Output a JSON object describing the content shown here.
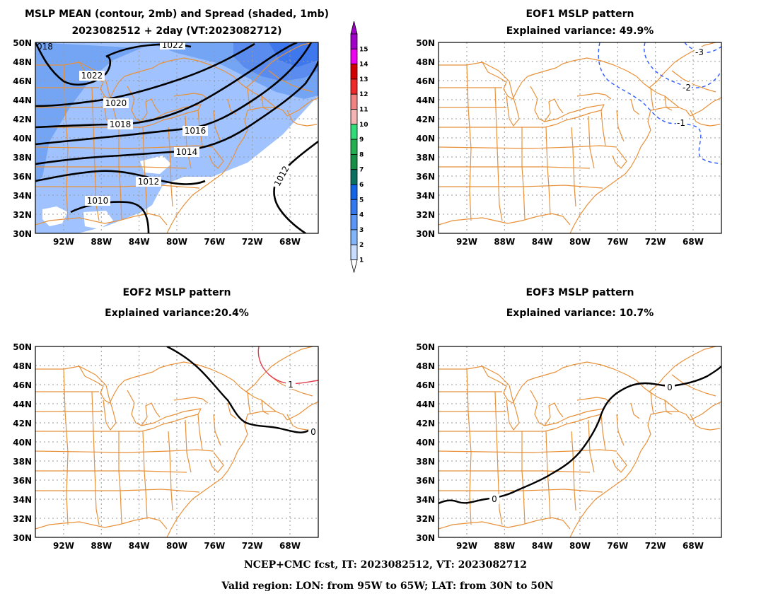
{
  "panels": {
    "mean": {
      "title1": "MSLP MEAN (contour, 2mb) and Spread (shaded, 1mb)",
      "title2": "2023082512 + 2day (VT:2023082712)",
      "contour_labels": [
        "1022",
        "1022",
        "1020",
        "1018",
        "1016",
        "1014",
        "1012",
        "1012",
        "1010",
        "018"
      ]
    },
    "eof1": {
      "title1": "EOF1 MSLP pattern",
      "title2": "Explained variance: 49.9%",
      "contour_labels": [
        "-3",
        "-2",
        "-1"
      ]
    },
    "eof2": {
      "title1": "EOF2 MSLP pattern",
      "title2": "Explained variance:20.4%",
      "contour_labels": [
        "0",
        "1"
      ]
    },
    "eof3": {
      "title1": "EOF3 MSLP pattern",
      "title2": "Explained variance: 10.7%",
      "contour_labels": [
        "0",
        "0"
      ]
    }
  },
  "axes": {
    "lon_labels": [
      "92W",
      "88W",
      "84W",
      "80W",
      "76W",
      "72W",
      "68W"
    ],
    "lat_labels": [
      "50N",
      "48N",
      "46N",
      "44N",
      "42N",
      "40N",
      "38N",
      "36N",
      "34N",
      "32N",
      "30N"
    ]
  },
  "colorbar": {
    "levels": [
      "15",
      "14",
      "13",
      "12",
      "11",
      "10",
      "9",
      "8",
      "7",
      "6",
      "5",
      "4",
      "3",
      "2",
      "1"
    ],
    "colors": [
      "#a000c8",
      "#f000f0",
      "#d20000",
      "#f02828",
      "#f08282",
      "#f5b4b4",
      "#30dc78",
      "#20b050",
      "#159045",
      "#0a7060",
      "#1464e6",
      "#3278f0",
      "#5a96f5",
      "#82b4fa",
      "#c8dcff"
    ]
  },
  "colors": {
    "map_lines": "#e8913a",
    "spread_light": "#a0c3ff",
    "spread_medium": "#74a5f5",
    "spread_dark": "#5a8cf0",
    "neg_contour": "#2d5aff",
    "pos_contour": "#e63c50",
    "zero_contour": "#000000"
  },
  "footer": {
    "line1": "NCEP+CMC fcst, IT: 2023082512, VT: 2023082712",
    "line2": "Valid region: LON: from 95W to 65W; LAT: from 30N to 50N"
  }
}
